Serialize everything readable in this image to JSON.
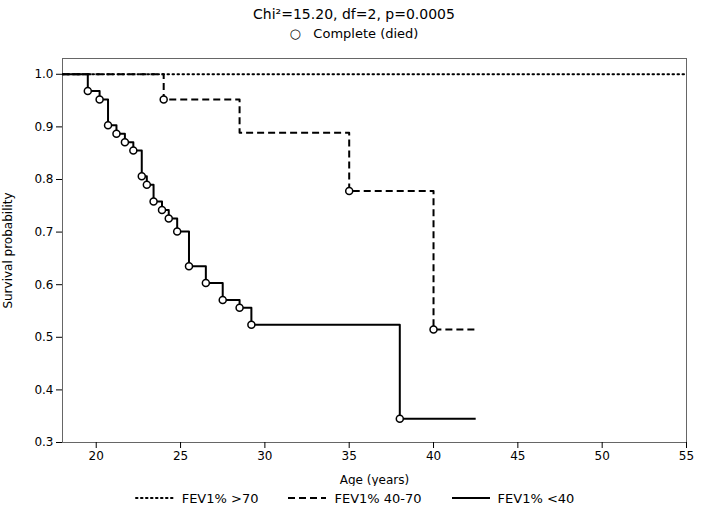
{
  "chart_data": {
    "type": "line",
    "title": "Chi²=15.20, df=2, p=0.0005",
    "subtitle": "○   Complete (died)",
    "xlabel": "Age (years)",
    "ylabel": "Survival probability",
    "xlim": [
      18,
      55
    ],
    "ylim": [
      0.3,
      1.03
    ],
    "xticks": [
      20,
      25,
      30,
      35,
      40,
      45,
      50,
      55
    ],
    "yticks": [
      0.3,
      0.4,
      0.5,
      0.6,
      0.7,
      0.8,
      0.9,
      {
        "value": 1.0,
        "label": "1.0"
      }
    ],
    "legend": "bottom",
    "series": [
      {
        "name": "FEV1% >70",
        "color": "#000000",
        "line_style": "dotted",
        "x": [
          18,
          55
        ],
        "values": [
          1.0,
          1.0
        ]
      },
      {
        "name": "FEV1% 40-70",
        "color": "#000000",
        "line_style": "dashed",
        "marker": "circle",
        "x": [
          18,
          24,
          24,
          28.5,
          28.5,
          35,
          35,
          40,
          40,
          42.5
        ],
        "values": [
          1.0,
          1.0,
          0.952,
          0.952,
          0.889,
          0.889,
          0.778,
          0.778,
          0.515,
          0.515
        ],
        "marker_x": [
          24,
          35,
          40
        ],
        "marker_values": [
          0.952,
          0.778,
          0.515
        ]
      },
      {
        "name": "FEV1% <40",
        "color": "#000000",
        "line_style": "solid",
        "marker": "circle",
        "x": [
          18,
          19.5,
          19.5,
          20.2,
          20.2,
          20.7,
          20.7,
          21.2,
          21.2,
          21.7,
          21.7,
          22.2,
          22.2,
          22.7,
          22.7,
          23.0,
          23.0,
          23.4,
          23.4,
          23.9,
          23.9,
          24.3,
          24.3,
          24.8,
          24.8,
          25.5,
          25.5,
          26.5,
          26.5,
          27.5,
          27.5,
          28.5,
          28.5,
          29.2,
          29.2,
          38.0,
          38.0,
          42.5
        ],
        "values": [
          1.0,
          1.0,
          0.968,
          0.968,
          0.952,
          0.952,
          0.903,
          0.903,
          0.887,
          0.887,
          0.871,
          0.871,
          0.855,
          0.855,
          0.806,
          0.806,
          0.79,
          0.79,
          0.758,
          0.758,
          0.742,
          0.742,
          0.726,
          0.726,
          0.701,
          0.701,
          0.635,
          0.635,
          0.603,
          0.603,
          0.571,
          0.571,
          0.556,
          0.556,
          0.524,
          0.524,
          0.345,
          0.345
        ],
        "marker_x": [
          19.5,
          20.2,
          20.7,
          21.2,
          21.7,
          22.2,
          22.7,
          23.0,
          23.4,
          23.9,
          24.3,
          24.8,
          25.5,
          26.5,
          27.5,
          28.5,
          29.2,
          38.0
        ],
        "marker_values": [
          0.968,
          0.952,
          0.903,
          0.887,
          0.871,
          0.855,
          0.806,
          0.79,
          0.758,
          0.742,
          0.726,
          0.701,
          0.635,
          0.603,
          0.571,
          0.556,
          0.524,
          0.345
        ]
      }
    ]
  }
}
